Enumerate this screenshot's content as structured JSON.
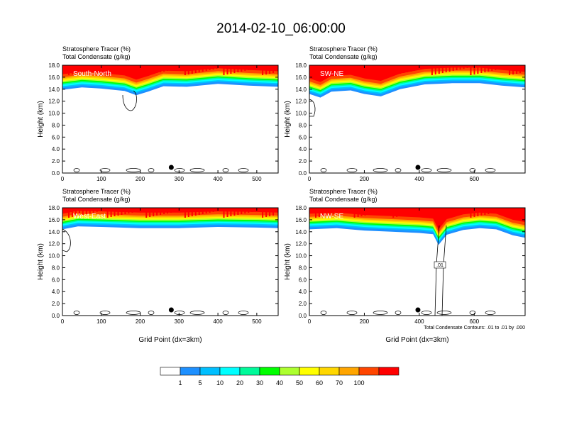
{
  "title": "2014-02-10_06:00:00",
  "panel_title_line1": "Stratosphere Tracer   (%)",
  "panel_title_line2": "Total Condensate   (g/kg)",
  "ylabel": "Height (km)",
  "xlabel": "Grid Point (dx=3km)",
  "contour_note": "Total Condensate Contours: .01 to .01 by .000",
  "contour_label": ".01",
  "colorbar": {
    "colors": [
      "#ffffff",
      "#1e90ff",
      "#00bfff",
      "#00ffff",
      "#00fa9a",
      "#00ff00",
      "#adff2f",
      "#ffff00",
      "#ffd700",
      "#ffa500",
      "#ff4500",
      "#ff0000"
    ],
    "labels": [
      "1",
      "5",
      "10",
      "20",
      "30",
      "40",
      "50",
      "60",
      "70",
      "100"
    ]
  },
  "chart_data": [
    {
      "type": "heatmap",
      "panel_label": "South-North",
      "xlim": [
        0,
        555
      ],
      "ylim": [
        0,
        18
      ],
      "xticks": [
        0,
        100,
        200,
        300,
        400,
        500
      ],
      "yticks": [
        "0.0",
        "2.0",
        "4.0",
        "6.0",
        "8.0",
        "10.0",
        "12.0",
        "14.0",
        "16.0",
        "18.0"
      ],
      "marker_x": 280,
      "tracer_bands": {
        "x": [
          0,
          50,
          100,
          160,
          190,
          220,
          260,
          320,
          400,
          480,
          555
        ],
        "base_km": [
          13.9,
          14.3,
          14.1,
          13.7,
          13.0,
          13.6,
          14.5,
          14.4,
          14.9,
          14.6,
          14.4
        ]
      }
    },
    {
      "type": "heatmap",
      "panel_label": "SW-NE",
      "xlim": [
        0,
        785
      ],
      "ylim": [
        0,
        18
      ],
      "xticks": [
        0,
        200,
        400,
        600
      ],
      "yticks": [
        "0.0",
        "2.0",
        "4.0",
        "6.0",
        "8.0",
        "10.0",
        "12.0",
        "14.0",
        "16.0",
        "18.0"
      ],
      "marker_x": 395,
      "tracer_bands": {
        "x": [
          0,
          40,
          80,
          150,
          200,
          260,
          330,
          420,
          520,
          620,
          700,
          785
        ],
        "base_km": [
          13.2,
          12.6,
          13.6,
          13.8,
          13.2,
          12.8,
          14.0,
          14.8,
          15.0,
          15.0,
          14.6,
          14.3
        ]
      }
    },
    {
      "type": "heatmap",
      "panel_label": "West-East",
      "xlim": [
        0,
        555
      ],
      "ylim": [
        0,
        18
      ],
      "xticks": [
        0,
        100,
        200,
        300,
        400,
        500
      ],
      "yticks": [
        "0.0",
        "2.0",
        "4.0",
        "6.0",
        "8.0",
        "10.0",
        "12.0",
        "14.0",
        "16.0",
        "18.0"
      ],
      "marker_x": 280,
      "tracer_bands": {
        "x": [
          0,
          40,
          100,
          200,
          300,
          400,
          500,
          555
        ],
        "base_km": [
          14.4,
          14.9,
          14.8,
          14.6,
          14.6,
          14.8,
          14.7,
          14.6
        ]
      }
    },
    {
      "type": "heatmap",
      "panel_label": "NW-SE",
      "xlim": [
        0,
        785
      ],
      "ylim": [
        0,
        18
      ],
      "xticks": [
        0,
        200,
        400,
        600
      ],
      "yticks": [
        "0.0",
        "2.0",
        "4.0",
        "6.0",
        "8.0",
        "10.0",
        "12.0",
        "14.0",
        "16.0",
        "18.0"
      ],
      "marker_x": 395,
      "tracer_bands": {
        "x": [
          0,
          100,
          200,
          300,
          400,
          450,
          470,
          500,
          560,
          620,
          680,
          740,
          785
        ],
        "base_km": [
          14.4,
          14.6,
          14.2,
          14.0,
          13.8,
          13.6,
          11.8,
          13.5,
          14.3,
          14.6,
          14.4,
          13.4,
          13.0
        ]
      }
    }
  ]
}
